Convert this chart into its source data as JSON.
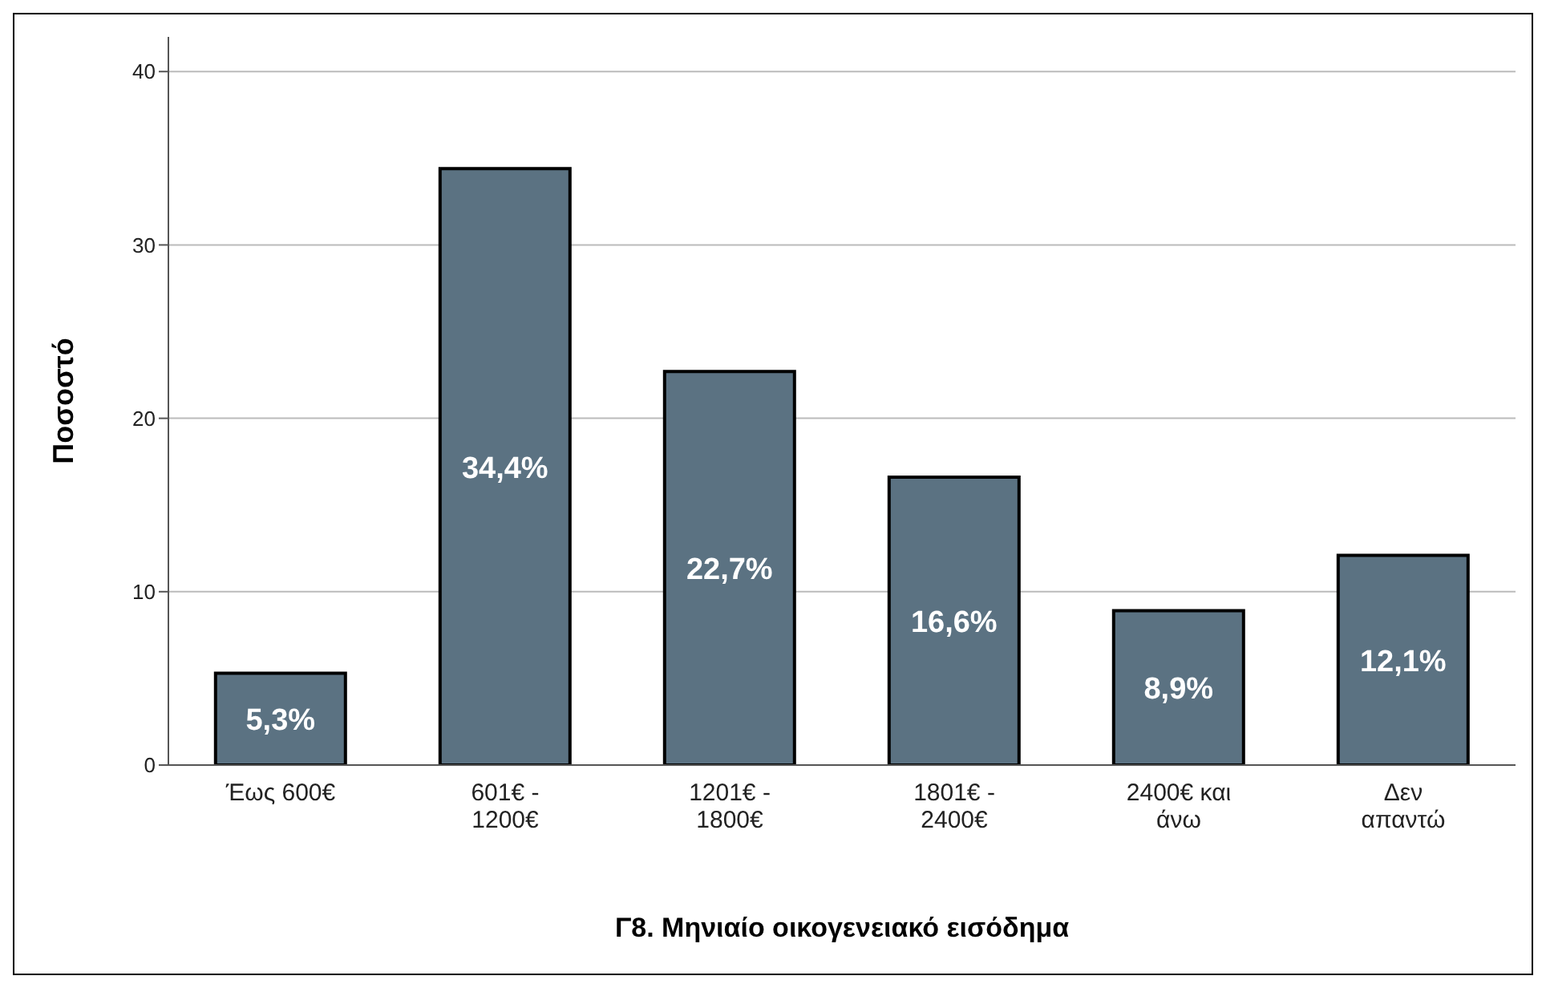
{
  "chart_data": {
    "type": "bar",
    "xlabel": "Γ8. Μηνιαίο οικογενειακό εισόδημα",
    "ylabel": "Ποσοστό",
    "categories": [
      "Έως 600€",
      "601€ -\n1200€",
      "1201€ -\n1800€",
      "1801€ -\n2400€",
      "2400€ και\nάνω",
      "Δεν\nαπαντώ"
    ],
    "values": [
      5.3,
      34.4,
      22.7,
      16.6,
      8.9,
      12.1
    ],
    "value_labels": [
      "5,3%",
      "34,4%",
      "22,7%",
      "16,6%",
      "8,9%",
      "12,1%"
    ],
    "color": "#5b7282",
    "ylim": [
      0,
      42
    ],
    "yticks": [
      0,
      10,
      20,
      30,
      40
    ],
    "grid": "y"
  }
}
